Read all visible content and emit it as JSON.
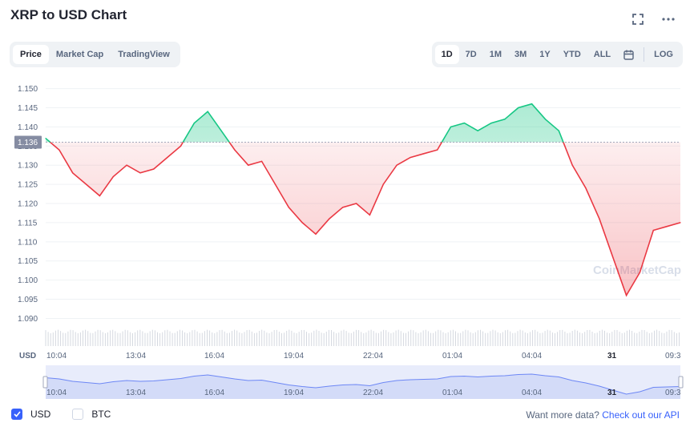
{
  "header": {
    "title": "XRP to USD Chart"
  },
  "icons": {
    "fullscreen": "fullscreen-icon",
    "more": "more-options-icon",
    "calendar": "calendar-icon"
  },
  "tabs_left": [
    {
      "label": "Price",
      "active": true
    },
    {
      "label": "Market Cap",
      "active": false
    },
    {
      "label": "TradingView",
      "active": false
    }
  ],
  "tabs_right": [
    {
      "label": "1D",
      "active": true
    },
    {
      "label": "7D",
      "active": false
    },
    {
      "label": "1M",
      "active": false
    },
    {
      "label": "3M",
      "active": false
    },
    {
      "label": "1Y",
      "active": false
    },
    {
      "label": "YTD",
      "active": false
    },
    {
      "label": "ALL",
      "active": false
    }
  ],
  "log_label": "LOG",
  "colors": {
    "up": "#16c784",
    "down": "#ea3943",
    "accent": "#3861fb",
    "grid": "#eff2f5",
    "text": "#58667e"
  },
  "chart_data": {
    "type": "line",
    "y_axis_label": "USD",
    "baseline_value": 1.136,
    "baseline_label": "1.136",
    "ylim": [
      1.088,
      1.152
    ],
    "yticks": [
      "1.150",
      "1.145",
      "1.140",
      "1.135",
      "1.130",
      "1.125",
      "1.120",
      "1.115",
      "1.110",
      "1.105",
      "1.100",
      "1.095",
      "1.090"
    ],
    "ytick_values": [
      1.15,
      1.145,
      1.14,
      1.135,
      1.13,
      1.125,
      1.12,
      1.115,
      1.11,
      1.105,
      1.1,
      1.095,
      1.09
    ],
    "xticks": [
      "10:04",
      "13:04",
      "16:04",
      "19:04",
      "22:04",
      "01:04",
      "04:04",
      "31",
      "09:3"
    ],
    "xtick_bold": [
      false,
      false,
      false,
      false,
      false,
      false,
      false,
      true,
      false
    ],
    "x": [
      "10:04",
      "10:34",
      "11:04",
      "11:34",
      "12:04",
      "12:34",
      "13:04",
      "13:34",
      "14:04",
      "14:34",
      "15:04",
      "15:34",
      "16:04",
      "16:34",
      "17:04",
      "17:34",
      "18:04",
      "18:34",
      "19:04",
      "19:34",
      "20:04",
      "20:34",
      "21:04",
      "21:34",
      "22:04",
      "22:34",
      "23:04",
      "23:34",
      "00:04",
      "00:34",
      "01:04",
      "01:34",
      "02:04",
      "02:34",
      "03:04",
      "03:34",
      "04:04",
      "04:34",
      "05:04",
      "05:34",
      "06:04",
      "06:34",
      "07:04",
      "07:34",
      "08:04",
      "08:34",
      "09:04",
      "09:30"
    ],
    "series": [
      {
        "values": [
          1.137,
          1.134,
          1.128,
          1.125,
          1.122,
          1.127,
          1.13,
          1.128,
          1.129,
          1.132,
          1.135,
          1.141,
          1.144,
          1.139,
          1.134,
          1.13,
          1.131,
          1.125,
          1.119,
          1.115,
          1.112,
          1.116,
          1.119,
          1.12,
          1.117,
          1.125,
          1.13,
          1.132,
          1.133,
          1.134,
          1.14,
          1.141,
          1.139,
          1.141,
          1.142,
          1.145,
          1.146,
          1.142,
          1.139,
          1.13,
          1.124,
          1.116,
          1.106,
          1.096,
          1.102,
          1.113,
          1.114,
          1.115
        ]
      }
    ],
    "navigator": {
      "xticks": [
        "10:04",
        "13:04",
        "16:04",
        "19:04",
        "22:04",
        "01:04",
        "04:04",
        "31",
        "09:3"
      ]
    },
    "watermark": "CoinMarketCap"
  },
  "footer": {
    "usd_label": "USD",
    "btc_label": "BTC",
    "more_text": "Want more data?",
    "more_link": "Check out our API"
  }
}
